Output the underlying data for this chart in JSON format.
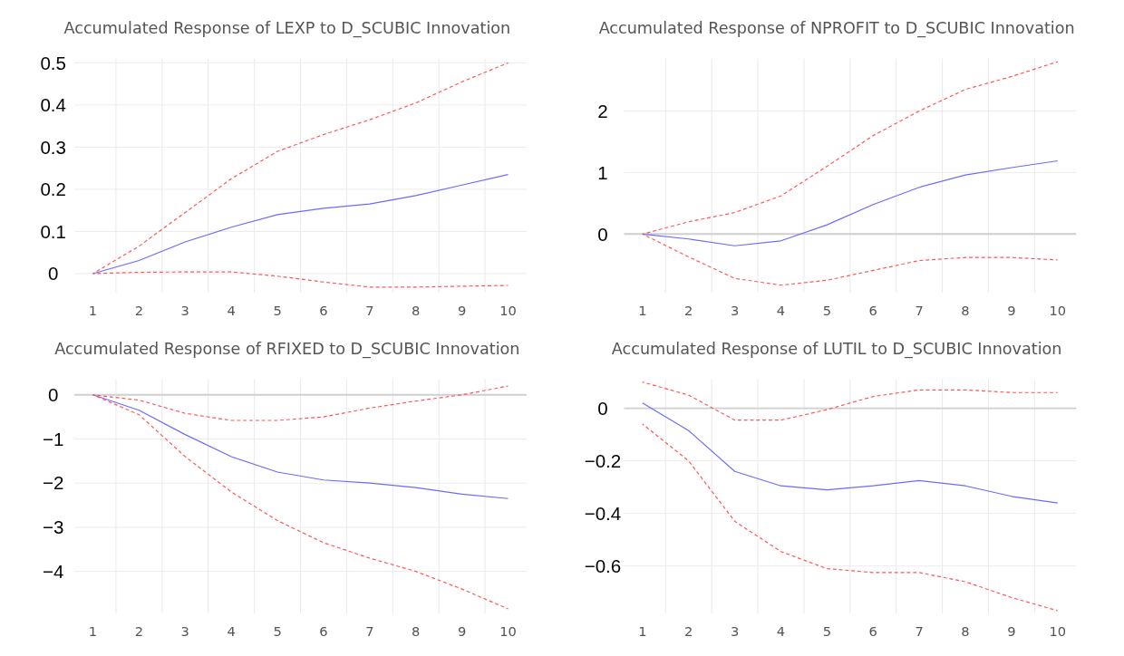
{
  "chart_data": [
    {
      "type": "line",
      "title": "Accumulated Response of LEXP to D_SCUBIC Innovation",
      "x": [
        1,
        2,
        3,
        4,
        5,
        6,
        7,
        8,
        9,
        10
      ],
      "xlim": [
        0.6,
        10.4
      ],
      "xticks": [
        1,
        {
          "value": 1.5,
          "label": null
        },
        2,
        {
          "value": 2.5,
          "label": null
        },
        3,
        {
          "value": 3.5,
          "label": null
        },
        4,
        {
          "value": 4.5,
          "label": null
        },
        5,
        {
          "value": 5.5,
          "label": null
        },
        6,
        {
          "value": 6.5,
          "label": null
        },
        7,
        {
          "value": 7.5,
          "label": null
        },
        8,
        {
          "value": 8.5,
          "label": null
        },
        9,
        {
          "value": 9.5,
          "label": null
        },
        10
      ],
      "ylim": [
        -0.045,
        0.51
      ],
      "yticks": [
        0,
        0.1,
        0.2,
        0.3,
        0.4,
        0.5
      ],
      "grid": true,
      "series": [
        {
          "color": "#6b6bff",
          "line_style": "solid",
          "values": [
            0,
            0.031,
            0.075,
            0.11,
            0.14,
            0.155,
            0.165,
            0.185,
            0.21,
            0.235
          ]
        },
        {
          "color": "#ff5555",
          "line_style": "dashed",
          "values": [
            0,
            0.065,
            0.145,
            0.225,
            0.29,
            0.33,
            0.365,
            0.405,
            0.455,
            0.5
          ]
        },
        {
          "color": "#ff5555",
          "line_style": "dashed",
          "values": [
            0,
            0.003,
            0.004,
            0.004,
            -0.006,
            -0.02,
            -0.032,
            -0.032,
            -0.03,
            -0.028
          ]
        }
      ]
    },
    {
      "type": "line",
      "title": "Accumulated Response of NPROFIT to D_SCUBIC Innovation",
      "x": [
        1,
        2,
        3,
        4,
        5,
        6,
        7,
        8,
        9,
        10
      ],
      "xlim": [
        0.6,
        10.4
      ],
      "xticks": [
        1,
        {
          "value": 1.5,
          "label": null
        },
        2,
        {
          "value": 2.5,
          "label": null
        },
        3,
        {
          "value": 3.5,
          "label": null
        },
        4,
        {
          "value": 4.5,
          "label": null
        },
        5,
        {
          "value": 5.5,
          "label": null
        },
        6,
        {
          "value": 6.5,
          "label": null
        },
        7,
        {
          "value": 7.5,
          "label": null
        },
        8,
        {
          "value": 8.5,
          "label": null
        },
        9,
        {
          "value": 9.5,
          "label": null
        },
        10
      ],
      "ylim": [
        -0.95,
        2.85
      ],
      "yticks": [
        0,
        1,
        2
      ],
      "grid": true,
      "ref_lines": [
        {
          "axis": "y",
          "value": 0,
          "color": "#cfcfcf"
        }
      ],
      "series": [
        {
          "color": "#6b6bff",
          "line_style": "solid",
          "values": [
            0,
            -0.08,
            -0.19,
            -0.11,
            0.15,
            0.48,
            0.76,
            0.96,
            1.08,
            1.19
          ]
        },
        {
          "color": "#ff5555",
          "line_style": "dashed",
          "values": [
            0,
            0.2,
            0.35,
            0.62,
            1.1,
            1.6,
            2.0,
            2.35,
            2.56,
            2.8
          ]
        },
        {
          "color": "#ff5555",
          "line_style": "dashed",
          "values": [
            0,
            -0.37,
            -0.72,
            -0.83,
            -0.75,
            -0.59,
            -0.43,
            -0.38,
            -0.38,
            -0.42
          ]
        }
      ]
    },
    {
      "type": "line",
      "title": "Accumulated Response of RFIXED to D_SCUBIC Innovation",
      "x": [
        1,
        2,
        3,
        4,
        5,
        6,
        7,
        8,
        9,
        10
      ],
      "xlim": [
        0.6,
        10.4
      ],
      "xticks": [
        1,
        {
          "value": 1.5,
          "label": null
        },
        2,
        {
          "value": 2.5,
          "label": null
        },
        3,
        {
          "value": 3.5,
          "label": null
        },
        4,
        {
          "value": 4.5,
          "label": null
        },
        5,
        {
          "value": 5.5,
          "label": null
        },
        6,
        {
          "value": 6.5,
          "label": null
        },
        7,
        {
          "value": 7.5,
          "label": null
        },
        8,
        {
          "value": 8.5,
          "label": null
        },
        9,
        {
          "value": 9.5,
          "label": null
        },
        10
      ],
      "ylim": [
        -4.95,
        0.35
      ],
      "yticks": [
        {
          "value": -4,
          "label": "−4"
        },
        {
          "value": -3,
          "label": "−3"
        },
        {
          "value": -2,
          "label": "−2"
        },
        {
          "value": -1,
          "label": "−1"
        },
        0
      ],
      "grid": true,
      "ref_lines": [
        {
          "axis": "y",
          "value": 0,
          "color": "#cfcfcf"
        }
      ],
      "series": [
        {
          "color": "#6b6bff",
          "line_style": "solid",
          "values": [
            0,
            -0.35,
            -0.9,
            -1.4,
            -1.75,
            -1.93,
            -2.0,
            -2.1,
            -2.25,
            -2.35
          ]
        },
        {
          "color": "#ff5555",
          "line_style": "dashed",
          "values": [
            0,
            -0.12,
            -0.42,
            -0.58,
            -0.58,
            -0.5,
            -0.3,
            -0.14,
            0.0,
            0.2
          ]
        },
        {
          "color": "#ff5555",
          "line_style": "dashed",
          "values": [
            0,
            -0.45,
            -1.4,
            -2.2,
            -2.85,
            -3.35,
            -3.7,
            -4.0,
            -4.4,
            -4.85
          ]
        }
      ]
    },
    {
      "type": "line",
      "title": "Accumulated Response of LUTIL to D_SCUBIC Innovation",
      "x": [
        1,
        2,
        3,
        4,
        5,
        6,
        7,
        8,
        9,
        10
      ],
      "xlim": [
        0.6,
        10.4
      ],
      "xticks": [
        1,
        {
          "value": 1.5,
          "label": null
        },
        2,
        {
          "value": 2.5,
          "label": null
        },
        3,
        {
          "value": 3.5,
          "label": null
        },
        4,
        {
          "value": 4.5,
          "label": null
        },
        5,
        {
          "value": 5.5,
          "label": null
        },
        6,
        {
          "value": 6.5,
          "label": null
        },
        7,
        {
          "value": 7.5,
          "label": null
        },
        8,
        {
          "value": 8.5,
          "label": null
        },
        9,
        {
          "value": 9.5,
          "label": null
        },
        10
      ],
      "ylim": [
        -0.78,
        0.11
      ],
      "yticks": [
        {
          "value": -0.6,
          "label": "−0.6"
        },
        {
          "value": -0.4,
          "label": "−0.4"
        },
        {
          "value": -0.2,
          "label": "−0.2"
        },
        0
      ],
      "grid": true,
      "ref_lines": [
        {
          "axis": "y",
          "value": 0,
          "color": "#cfcfcf"
        }
      ],
      "series": [
        {
          "color": "#6b6bff",
          "line_style": "solid",
          "values": [
            0.02,
            -0.085,
            -0.24,
            -0.295,
            -0.31,
            -0.295,
            -0.275,
            -0.295,
            -0.335,
            -0.36
          ]
        },
        {
          "color": "#ff5555",
          "line_style": "dashed",
          "values": [
            0.1,
            0.05,
            -0.045,
            -0.045,
            -0.005,
            0.045,
            0.07,
            0.07,
            0.06,
            0.06
          ]
        },
        {
          "color": "#ff5555",
          "line_style": "dashed",
          "values": [
            -0.06,
            -0.2,
            -0.43,
            -0.545,
            -0.61,
            -0.625,
            -0.625,
            -0.66,
            -0.72,
            -0.77
          ]
        }
      ]
    }
  ]
}
